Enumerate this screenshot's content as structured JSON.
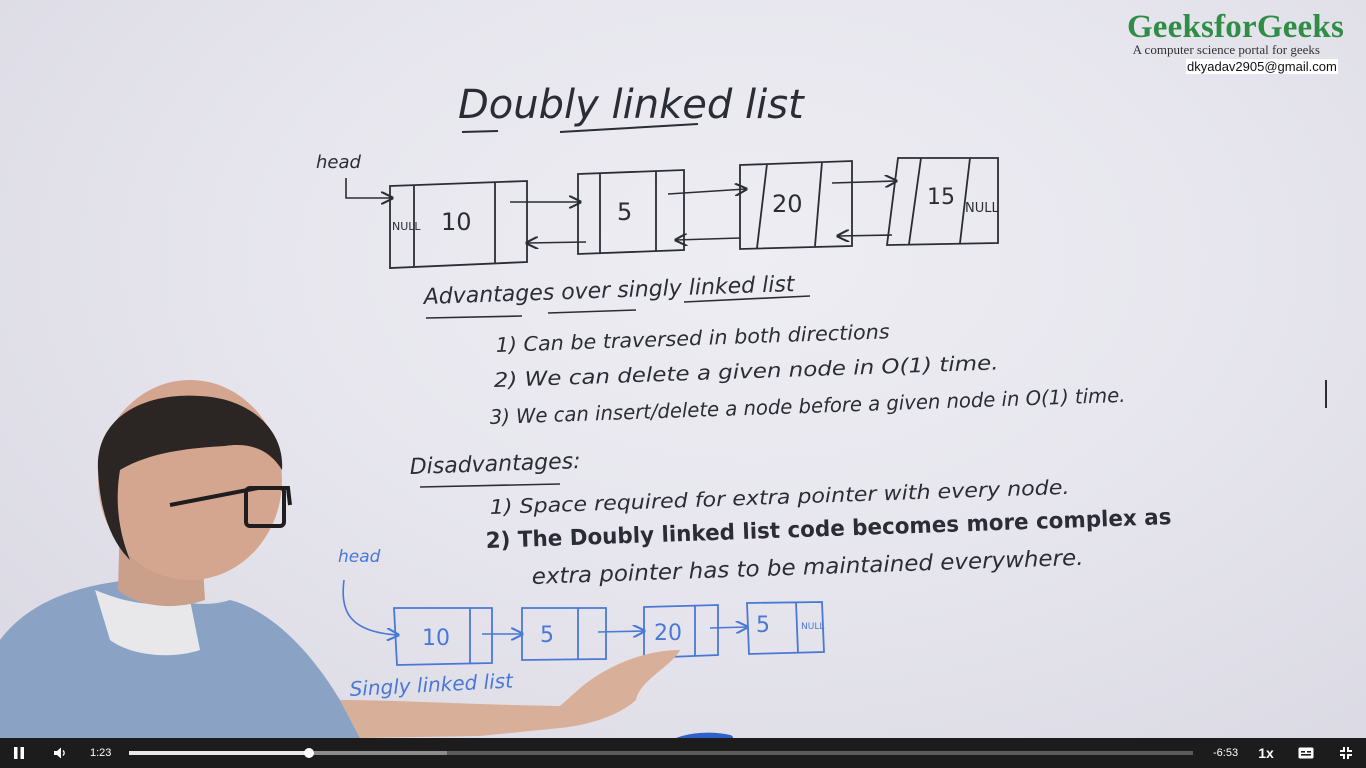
{
  "video": {
    "watermark": {
      "logo": "GeeksforGeeks",
      "tagline": "A computer science portal for geeks",
      "email": "dkyadav2905@gmail.com"
    },
    "whiteboard": {
      "title": "Doubly linked list",
      "head_label": "head",
      "dll_nodes": [
        "10",
        "5",
        "20",
        "15"
      ],
      "null_label": "NULL",
      "advantages_heading": "Advantages over singly linked list",
      "advantages": [
        "1)  Can be traversed in both directions",
        "2)  We can delete a given node in O(1) time.",
        "3)  We can insert/delete a node before a given node in O(1) time."
      ],
      "disadvantages_heading": "Disadvantages:",
      "disadvantages": [
        "1)  Space required for extra pointer with every node.",
        "2)  The Doubly linked list code becomes more complex as",
        "extra pointer has to be maintained everywhere."
      ],
      "sll_head_label": "head",
      "sll_nodes": [
        "10",
        "5",
        "20",
        "5"
      ],
      "sll_null_label": "NULL",
      "sll_caption": "Singly linked list"
    }
  },
  "player": {
    "current_time": "1:23",
    "remaining_time": "-6:53",
    "progress_fraction": 0.169,
    "buffered_fraction": 0.299,
    "speed_label": "1x",
    "icons": {
      "play_pause": "pause-icon",
      "volume": "volume-icon",
      "captions": "captions-icon",
      "fullscreen": "exit-fullscreen-icon"
    }
  }
}
